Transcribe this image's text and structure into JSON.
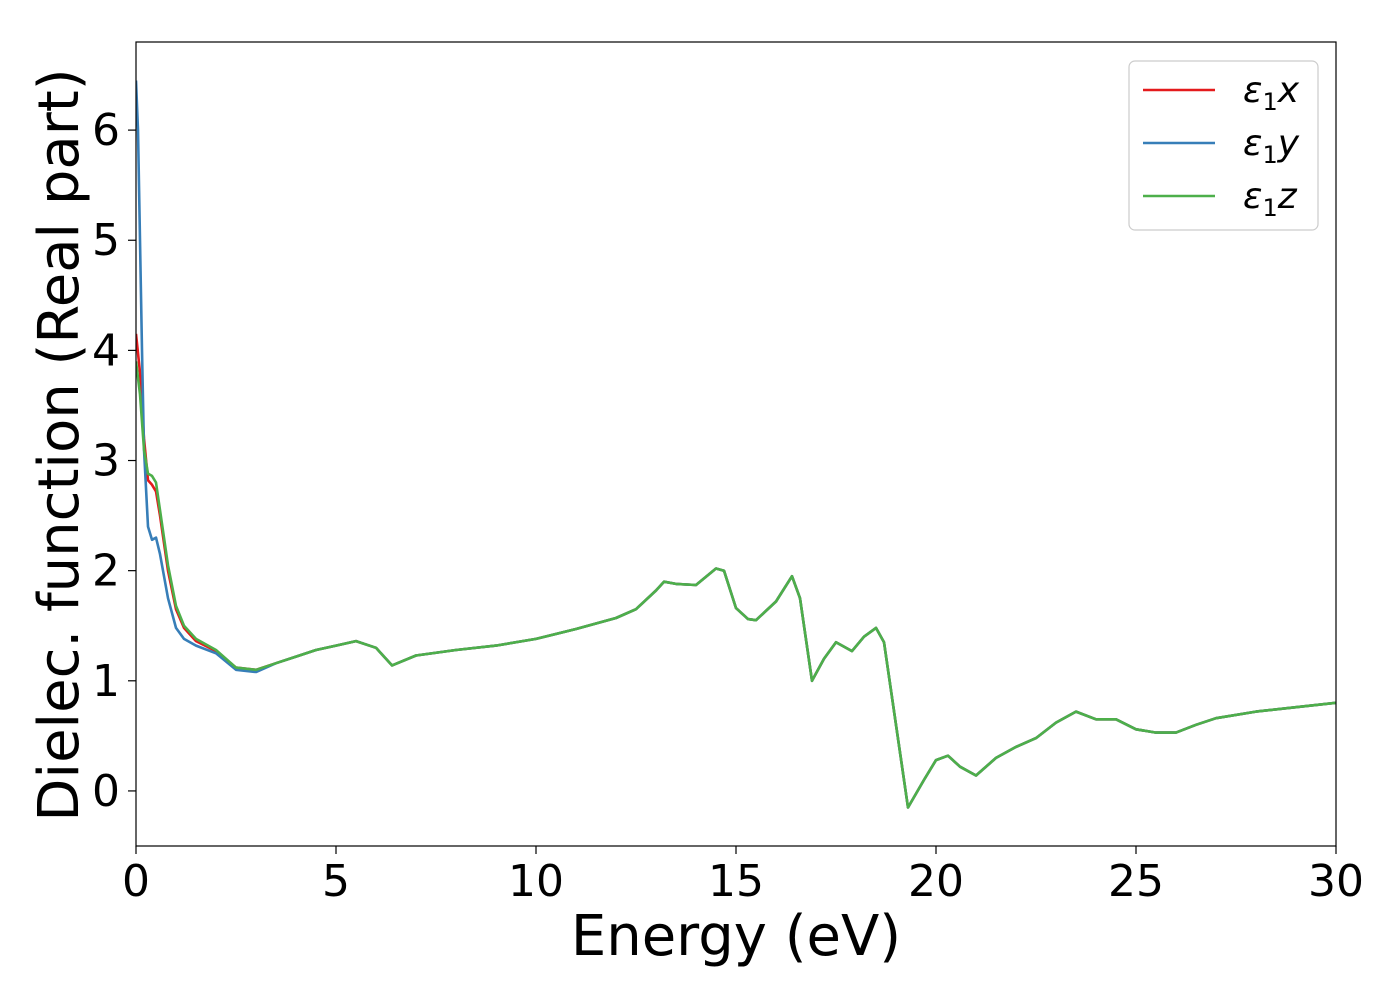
{
  "chart_data": {
    "type": "line",
    "title": "",
    "xlabel": "Energy (eV)",
    "ylabel": "Dielec. function (Real part)",
    "xlim": [
      0,
      30
    ],
    "ylim": [
      -0.5,
      6.8
    ],
    "xticks": [
      0,
      5,
      10,
      15,
      20,
      25,
      30
    ],
    "yticks": [
      0,
      1,
      2,
      3,
      4,
      5,
      6
    ],
    "grid": false,
    "legend_position": "top-right",
    "series": [
      {
        "name": "ε₁x",
        "legend_base": "ε",
        "legend_sub": "1",
        "legend_tail": "x",
        "color": "#e41a1c",
        "x": [
          0,
          0.1,
          0.2,
          0.3,
          0.4,
          0.5,
          0.6,
          0.8,
          1.0,
          1.2,
          1.5,
          2.0,
          2.5,
          3.0,
          3.5,
          4.0,
          4.5,
          5.0,
          5.5,
          6.0,
          6.4,
          7.0,
          8.0,
          9.0,
          10.0,
          11.0,
          12.0,
          12.5,
          13.0,
          13.2,
          13.5,
          14.0,
          14.5,
          14.7,
          15.0,
          15.3,
          15.5,
          16.0,
          16.4,
          16.6,
          16.9,
          17.2,
          17.5,
          17.9,
          18.2,
          18.5,
          18.7,
          19.0,
          19.3,
          19.7,
          20.0,
          20.3,
          20.6,
          21.0,
          21.5,
          22.0,
          22.5,
          23.0,
          23.5,
          24.0,
          24.5,
          25.0,
          25.5,
          26.0,
          26.5,
          27.0,
          28.0,
          29.0,
          30.0
        ],
        "y": [
          4.15,
          3.8,
          3.2,
          2.82,
          2.78,
          2.72,
          2.5,
          2.0,
          1.65,
          1.48,
          1.36,
          1.27,
          1.12,
          1.1,
          1.16,
          1.22,
          1.28,
          1.32,
          1.36,
          1.3,
          1.14,
          1.23,
          1.28,
          1.32,
          1.38,
          1.47,
          1.57,
          1.65,
          1.82,
          1.9,
          1.88,
          1.87,
          2.02,
          2.0,
          1.66,
          1.56,
          1.55,
          1.72,
          1.95,
          1.75,
          1.0,
          1.2,
          1.35,
          1.27,
          1.4,
          1.48,
          1.35,
          0.6,
          -0.15,
          0.1,
          0.28,
          0.32,
          0.22,
          0.14,
          0.3,
          0.4,
          0.48,
          0.62,
          0.72,
          0.65,
          0.65,
          0.56,
          0.53,
          0.53,
          0.6,
          0.66,
          0.72,
          0.76,
          0.8
        ]
      },
      {
        "name": "ε₁y",
        "legend_base": "ε",
        "legend_sub": "1",
        "legend_tail": "y",
        "color": "#377eb8",
        "x": [
          0,
          0.05,
          0.1,
          0.15,
          0.2,
          0.3,
          0.4,
          0.5,
          0.6,
          0.8,
          1.0,
          1.2,
          1.5,
          2.0,
          2.5,
          3.0,
          3.5,
          4.0,
          4.5,
          5.0,
          5.5,
          6.0,
          6.4,
          7.0,
          8.0,
          9.0,
          10.0,
          11.0,
          12.0,
          12.5,
          13.0,
          13.2,
          13.5,
          14.0,
          14.5,
          14.7,
          15.0,
          15.3,
          15.5,
          16.0,
          16.4,
          16.6,
          16.9,
          17.2,
          17.5,
          17.9,
          18.2,
          18.5,
          18.7,
          19.0,
          19.3,
          19.7,
          20.0,
          20.3,
          20.6,
          21.0,
          21.5,
          22.0,
          22.5,
          23.0,
          23.5,
          24.0,
          24.5,
          25.0,
          25.5,
          26.0,
          26.5,
          27.0,
          28.0,
          29.0,
          30.0
        ],
        "y": [
          6.45,
          6.0,
          5.0,
          4.0,
          3.1,
          2.4,
          2.28,
          2.3,
          2.15,
          1.75,
          1.48,
          1.38,
          1.32,
          1.25,
          1.1,
          1.08,
          1.16,
          1.22,
          1.28,
          1.32,
          1.36,
          1.3,
          1.14,
          1.23,
          1.28,
          1.32,
          1.38,
          1.47,
          1.57,
          1.65,
          1.82,
          1.9,
          1.88,
          1.87,
          2.02,
          2.0,
          1.66,
          1.56,
          1.55,
          1.72,
          1.95,
          1.75,
          1.0,
          1.2,
          1.35,
          1.27,
          1.4,
          1.48,
          1.35,
          0.6,
          -0.15,
          0.1,
          0.28,
          0.32,
          0.22,
          0.14,
          0.3,
          0.4,
          0.48,
          0.62,
          0.72,
          0.65,
          0.65,
          0.56,
          0.53,
          0.53,
          0.6,
          0.66,
          0.72,
          0.76,
          0.8
        ]
      },
      {
        "name": "ε₁z",
        "legend_base": "ε",
        "legend_sub": "1",
        "legend_tail": "z",
        "color": "#4daf4a",
        "x": [
          0,
          0.1,
          0.2,
          0.3,
          0.4,
          0.5,
          0.6,
          0.8,
          1.0,
          1.2,
          1.5,
          2.0,
          2.5,
          3.0,
          3.5,
          4.0,
          4.5,
          5.0,
          5.5,
          6.0,
          6.4,
          7.0,
          8.0,
          9.0,
          10.0,
          11.0,
          12.0,
          12.5,
          13.0,
          13.2,
          13.5,
          14.0,
          14.5,
          14.7,
          15.0,
          15.3,
          15.5,
          16.0,
          16.4,
          16.6,
          16.9,
          17.2,
          17.5,
          17.9,
          18.2,
          18.5,
          18.7,
          19.0,
          19.3,
          19.7,
          20.0,
          20.3,
          20.6,
          21.0,
          21.5,
          22.0,
          22.5,
          23.0,
          23.5,
          24.0,
          24.5,
          25.0,
          25.5,
          26.0,
          26.5,
          27.0,
          28.0,
          29.0,
          30.0
        ],
        "y": [
          3.9,
          3.6,
          3.1,
          2.88,
          2.86,
          2.8,
          2.55,
          2.05,
          1.68,
          1.5,
          1.38,
          1.28,
          1.12,
          1.1,
          1.16,
          1.22,
          1.28,
          1.32,
          1.36,
          1.3,
          1.14,
          1.23,
          1.28,
          1.32,
          1.38,
          1.47,
          1.57,
          1.65,
          1.82,
          1.9,
          1.88,
          1.87,
          2.02,
          2.0,
          1.66,
          1.56,
          1.55,
          1.72,
          1.95,
          1.75,
          1.0,
          1.2,
          1.35,
          1.27,
          1.4,
          1.48,
          1.35,
          0.6,
          -0.15,
          0.1,
          0.28,
          0.32,
          0.22,
          0.14,
          0.3,
          0.4,
          0.48,
          0.62,
          0.72,
          0.65,
          0.65,
          0.56,
          0.53,
          0.53,
          0.6,
          0.66,
          0.72,
          0.76,
          0.8
        ]
      }
    ]
  }
}
